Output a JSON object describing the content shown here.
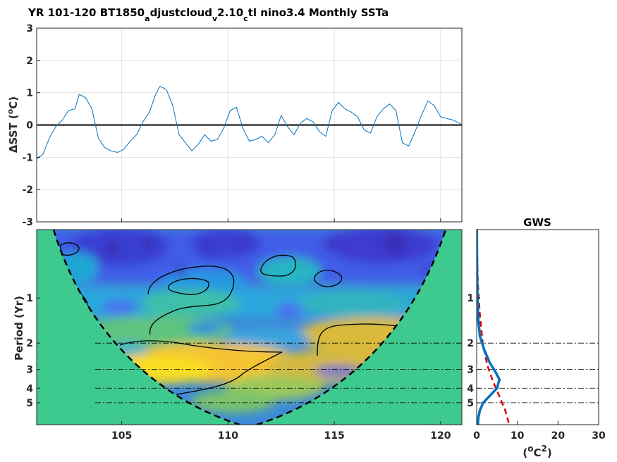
{
  "title_parts": {
    "p1": "YR 101-120 BT1850",
    "s1": "a",
    "p2": "djustcloud",
    "s2": "v",
    "p3": "2.10",
    "s3": "c",
    "p4": "tl nino3.4 Monthly SSTa"
  },
  "ts_ylabel": {
    "delta": "Δ",
    "text": "SST (",
    "sup": "o",
    "end": "C)"
  },
  "wave_ylabel": "Period (Yr)",
  "gws_title": "GWS",
  "gws_xlabel": {
    "open": "(",
    "sup1": "o",
    "mid": "C",
    "sup2": "2",
    "close": ")"
  },
  "colors": {
    "ts_line": "#0072bd",
    "zero_line": "#000000",
    "coi_fill": "#3ec98e",
    "gws_power": "#0072bd",
    "gws_signif": "#dd0000"
  },
  "chart_data": [
    {
      "type": "line",
      "title": "YR 101-120 BT1850adjustcloudv2.10ctl nino3.4 Monthly SSTa",
      "xlabel": "",
      "ylabel": "ΔSST (°C)",
      "xlim": [
        101,
        121
      ],
      "ylim": [
        -3,
        3
      ],
      "yticks": [
        -3,
        -2,
        -1,
        0,
        1,
        2,
        3
      ],
      "ytick_labels": [
        "-3",
        "-2",
        "-1",
        "0",
        "1",
        "2",
        "3"
      ],
      "xticks": [
        105,
        110,
        115,
        120
      ],
      "grid": true,
      "series": [
        {
          "x": [
            101.0,
            101.3,
            101.6,
            101.9,
            102.2,
            102.5,
            102.8,
            103.0,
            103.3,
            103.6,
            103.9,
            104.2,
            104.5,
            104.8,
            105.1,
            105.4,
            105.7,
            106.0,
            106.3,
            106.6,
            106.8,
            107.1,
            107.4,
            107.7,
            108.0,
            108.3,
            108.6,
            108.9,
            109.2,
            109.5,
            109.8,
            110.1,
            110.4,
            110.7,
            111.0,
            111.3,
            111.6,
            111.9,
            112.2,
            112.5,
            112.8,
            113.1,
            113.4,
            113.7,
            114.0,
            114.3,
            114.6,
            114.9,
            115.2,
            115.5,
            115.8,
            116.1,
            116.4,
            116.7,
            117.0,
            117.3,
            117.6,
            117.9,
            118.2,
            118.5,
            118.8,
            119.1,
            119.4,
            119.7,
            120.0,
            120.3,
            120.6,
            120.9,
            121.0
          ],
          "y": [
            -1.05,
            -0.9,
            -0.4,
            -0.05,
            0.15,
            0.45,
            0.5,
            0.95,
            0.85,
            0.5,
            -0.4,
            -0.7,
            -0.8,
            -0.85,
            -0.75,
            -0.5,
            -0.3,
            0.1,
            0.4,
            0.95,
            1.2,
            1.1,
            0.6,
            -0.3,
            -0.55,
            -0.8,
            -0.6,
            -0.3,
            -0.5,
            -0.45,
            -0.1,
            0.45,
            0.55,
            -0.1,
            -0.5,
            -0.45,
            -0.35,
            -0.55,
            -0.3,
            0.3,
            -0.05,
            -0.3,
            0.05,
            0.2,
            0.1,
            -0.2,
            -0.35,
            0.45,
            0.7,
            0.5,
            0.4,
            0.25,
            -0.15,
            -0.25,
            0.25,
            0.5,
            0.65,
            0.45,
            -0.55,
            -0.65,
            -0.2,
            0.3,
            0.75,
            0.6,
            0.25,
            0.2,
            0.15,
            0.05,
            0.0
          ]
        }
      ]
    },
    {
      "type": "heatmap",
      "ylabel": "Period (Yr)",
      "xlim": [
        101,
        121
      ],
      "xticks": [
        105,
        110,
        115,
        120
      ],
      "xtick_labels": [
        "105",
        "110",
        "115",
        "120"
      ],
      "yticks": [
        1,
        2,
        3,
        4,
        5
      ],
      "ytick_labels": [
        "1",
        "2",
        "3",
        "4",
        "5"
      ],
      "yscale": "log",
      "ylim": [
        0.35,
        7
      ],
      "reference_periods": [
        2,
        3,
        4,
        5
      ],
      "cone_of_influence": "dashed black",
      "power_peak_periods": [
        2.5,
        3.5
      ],
      "colormap": "parula"
    },
    {
      "type": "line",
      "title": "GWS",
      "xlabel": "(°C²)",
      "xlim": [
        0,
        30
      ],
      "xticks": [
        0,
        10,
        20,
        30
      ],
      "xtick_labels": [
        "0",
        "10",
        "20",
        "30"
      ],
      "yticks": [
        1,
        2,
        3,
        4,
        5
      ],
      "ytick_labels": [
        "1",
        "2",
        "3",
        "4",
        "5"
      ],
      "yscale": "log",
      "reference_periods": [
        2,
        3,
        4,
        5
      ],
      "series": [
        {
          "x": [
            0.05,
            0.1,
            0.2,
            0.4,
            0.8,
            1.8,
            3.2,
            4.6,
            5.6,
            5.0,
            3.2,
            1.6,
            0.8,
            0.4,
            0.3
          ],
          "y": [
            0.35,
            0.7,
            1.0,
            1.4,
            1.8,
            2.2,
            2.7,
            3.1,
            3.5,
            4.0,
            4.5,
            5.0,
            5.6,
            6.3,
            7.0
          ]
        },
        {
          "x": [
            0.0,
            0.3,
            0.8,
            1.5,
            2.6,
            4.0,
            5.4,
            7.0,
            8.0
          ],
          "y": [
            0.35,
            0.8,
            1.3,
            2.0,
            2.8,
            3.6,
            4.4,
            5.6,
            7.0
          ]
        }
      ]
    }
  ]
}
